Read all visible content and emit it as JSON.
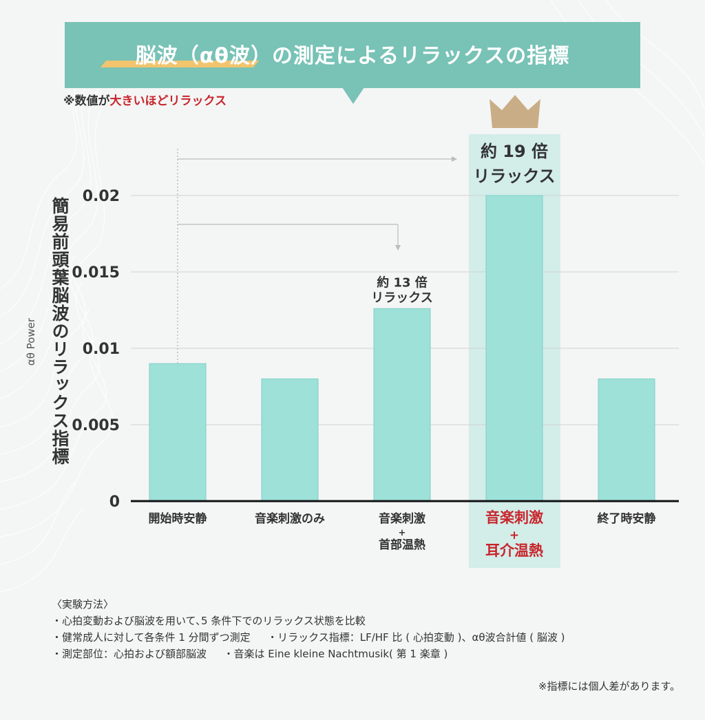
{
  "header": {
    "title": "脳波（αθ波）の測定によるリラックスの指標",
    "note_prefix": "※数値が",
    "note_highlight": "大きいほどリラックス"
  },
  "colors": {
    "bar": "#9de1d9",
    "bar_stroke": "#7fd0c5",
    "banner": "#78c2b6",
    "highlight_column": "#d3ede9",
    "highlight_text": "#c8242b",
    "crown": "#c9ad86"
  },
  "chart_data": {
    "type": "bar",
    "ylabel": "簡易前頭葉脳波のリラックス指標",
    "ylabel_sub": "αθ Power",
    "ylim": [
      0,
      0.02
    ],
    "ytick_labels": [
      "0",
      "0.005",
      "0.01",
      "0.015",
      "0.02"
    ],
    "yticks": [
      0,
      0.005,
      0.01,
      0.015,
      0.02
    ],
    "grid": true,
    "categories": [
      [
        "開始時安静"
      ],
      [
        "音楽刺激のみ"
      ],
      [
        "音楽刺激",
        "+",
        "首部温熱"
      ],
      [
        "音楽刺激",
        "+",
        "耳介温熱"
      ],
      [
        "終了時安静"
      ]
    ],
    "values": [
      0.009,
      0.008,
      0.0126,
      0.02,
      0.008
    ],
    "highlight_index": 3,
    "annotations": [
      {
        "bar_index": 2,
        "lines": [
          "約 13 倍",
          "リラックス"
        ]
      },
      {
        "bar_index": 3,
        "lines": [
          "約 19 倍",
          "リラックス"
        ]
      }
    ]
  },
  "methods": {
    "heading": "〈実験方法〉",
    "lines": [
      "・心拍変動および脳波を用いて､5 条件下でのリラックス状態を比較",
      "・健常成人に対して各条件 1 分間ずつ測定　  ・リラックス指標：LF/HF 比 ( 心拍変動 )、αθ波合計値 ( 脳波 )",
      "・測定部位：心拍および額部脳波　  ・音楽は Eine kleine Nachtmusik( 第 1 楽章 )"
    ]
  },
  "footnote": "※指標には個人差があります。"
}
